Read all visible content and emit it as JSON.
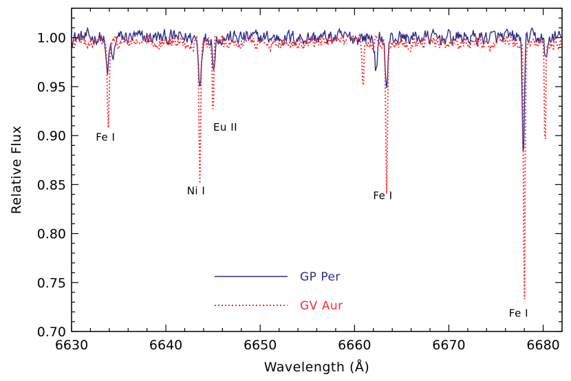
{
  "chart_data": {
    "type": "line",
    "xlabel": "Wavelength (Å)",
    "ylabel": "Relative Flux",
    "xlim": [
      6630,
      6682
    ],
    "ylim": [
      0.7,
      1.03
    ],
    "x_ticks": [
      6630,
      6640,
      6650,
      6660,
      6670,
      6680
    ],
    "y_ticks": [
      0.7,
      0.75,
      0.8,
      0.85,
      0.9,
      0.95,
      1.0
    ],
    "grid": false,
    "legend_position": "lower-center",
    "series": [
      {
        "name": "GP Per",
        "color": "#2b2b8f",
        "style": "solid",
        "baseline": 1.0,
        "noise": 0.012,
        "lines": [
          {
            "center": 6633.8,
            "depth": 0.035,
            "width": 0.25
          },
          {
            "center": 6634.4,
            "depth": 0.025,
            "width": 0.2
          },
          {
            "center": 6643.6,
            "depth": 0.045,
            "width": 0.22
          },
          {
            "center": 6645.1,
            "depth": 0.03,
            "width": 0.18
          },
          {
            "center": 6662.3,
            "depth": 0.035,
            "width": 0.2
          },
          {
            "center": 6663.4,
            "depth": 0.05,
            "width": 0.2
          },
          {
            "center": 6677.9,
            "depth": 0.12,
            "width": 0.16
          },
          {
            "center": 6680.3,
            "depth": 0.025,
            "width": 0.2
          }
        ]
      },
      {
        "name": "GV Aur",
        "color": "#ff2a2a",
        "style": "dotted",
        "baseline": 0.995,
        "noise": 0.01,
        "lines": [
          {
            "center": 6633.9,
            "depth": 0.09,
            "width": 0.14
          },
          {
            "center": 6643.6,
            "depth": 0.14,
            "width": 0.12
          },
          {
            "center": 6645.0,
            "depth": 0.085,
            "width": 0.1
          },
          {
            "center": 6660.9,
            "depth": 0.05,
            "width": 0.12
          },
          {
            "center": 6663.4,
            "depth": 0.15,
            "width": 0.12
          },
          {
            "center": 6678.0,
            "depth": 0.27,
            "width": 0.11
          },
          {
            "center": 6680.2,
            "depth": 0.115,
            "width": 0.1
          }
        ]
      }
    ],
    "annotations": [
      {
        "text": "Fe I",
        "x": 6633.6,
        "y": 0.895
      },
      {
        "text": "Eu II",
        "x": 6646.3,
        "y": 0.905
      },
      {
        "text": "Ni I",
        "x": 6643.2,
        "y": 0.84
      },
      {
        "text": "Fe I",
        "x": 6663.0,
        "y": 0.835
      },
      {
        "text": "Fe I",
        "x": 6677.4,
        "y": 0.715
      }
    ]
  }
}
